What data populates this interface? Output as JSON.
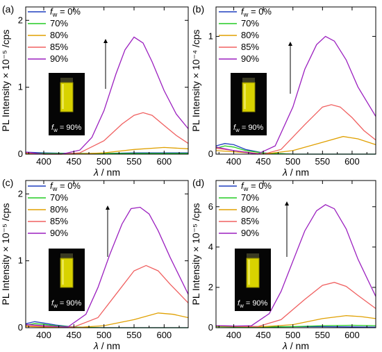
{
  "figure": {
    "x_axis_label": "λ / nm",
    "inset_label": "f_w = 90%",
    "legend_labels": [
      "f_w = 0%",
      "70%",
      "80%",
      "85%",
      "90%"
    ],
    "series_colors": [
      "#1f3fbf",
      "#22cc22",
      "#e0a000",
      "#f06060",
      "#9b1fbf"
    ]
  },
  "chart_data": [
    {
      "type": "line",
      "panel_label": "(a)",
      "ylabel": "PL Intensity × 10⁻⁵ /cps",
      "xlabel": "λ / nm",
      "xlim": [
        370,
        640
      ],
      "ylim": [
        0,
        2.2
      ],
      "x_ticks": [
        "400",
        "450",
        "500",
        "550",
        "600"
      ],
      "y_ticks": [
        "0",
        "1",
        "2"
      ],
      "series": [
        {
          "name": "f_w = 0%",
          "color": "#1f3fbf",
          "x": [
            370,
            400,
            450,
            500,
            550,
            600,
            640
          ],
          "y": [
            0.03,
            0.02,
            0.01,
            0.01,
            0.02,
            0.02,
            0.02
          ]
        },
        {
          "name": "70%",
          "color": "#22cc22",
          "x": [
            370,
            400,
            450,
            500,
            550,
            600,
            640
          ],
          "y": [
            0.02,
            0.01,
            0.01,
            0.01,
            0.01,
            0.01,
            0.01
          ]
        },
        {
          "name": "80%",
          "color": "#e0a000",
          "x": [
            370,
            400,
            450,
            500,
            550,
            600,
            640
          ],
          "y": [
            0.01,
            0.0,
            0.0,
            0.02,
            0.07,
            0.1,
            0.08
          ]
        },
        {
          "name": "85%",
          "color": "#f06060",
          "x": [
            370,
            400,
            430,
            460,
            500,
            530,
            550,
            565,
            580,
            600,
            620,
            640
          ],
          "y": [
            0.02,
            0.0,
            0.0,
            0.02,
            0.2,
            0.45,
            0.58,
            0.62,
            0.58,
            0.43,
            0.28,
            0.16
          ]
        },
        {
          "name": "90%",
          "color": "#9b1fbf",
          "x": [
            370,
            400,
            430,
            460,
            480,
            500,
            520,
            535,
            550,
            565,
            580,
            600,
            620,
            640
          ],
          "y": [
            0.03,
            0.0,
            0.0,
            0.06,
            0.25,
            0.65,
            1.2,
            1.56,
            1.75,
            1.66,
            1.38,
            0.95,
            0.6,
            0.38
          ]
        }
      ]
    },
    {
      "type": "line",
      "panel_label": "(b)",
      "ylabel": "PL Intensity × 10⁻⁴ /cps",
      "xlabel": "λ / nm",
      "xlim": [
        370,
        640
      ],
      "ylim": [
        0,
        1.25
      ],
      "x_ticks": [
        "400",
        "450",
        "500",
        "550",
        "600"
      ],
      "y_ticks": [
        "0",
        "1"
      ],
      "series": [
        {
          "name": "f_w = 0%",
          "color": "#1f3fbf",
          "x": [
            370,
            385,
            400,
            420,
            450,
            500,
            550,
            600,
            640
          ],
          "y": [
            0.07,
            0.09,
            0.08,
            0.04,
            0.01,
            0.0,
            0.0,
            0.0,
            0.0
          ]
        },
        {
          "name": "70%",
          "color": "#22cc22",
          "x": [
            370,
            385,
            400,
            420,
            450,
            500,
            550,
            600,
            640
          ],
          "y": [
            0.05,
            0.07,
            0.06,
            0.03,
            0.01,
            0.0,
            0.0,
            0.0,
            0.0
          ]
        },
        {
          "name": "80%",
          "color": "#e0a000",
          "x": [
            370,
            400,
            450,
            500,
            550,
            585,
            610,
            640
          ],
          "y": [
            0.03,
            0.02,
            0.0,
            0.03,
            0.1,
            0.15,
            0.13,
            0.08
          ]
        },
        {
          "name": "85%",
          "color": "#f06060",
          "x": [
            370,
            400,
            450,
            480,
            520,
            550,
            565,
            580,
            600,
            620,
            640
          ],
          "y": [
            0.05,
            0.03,
            0.0,
            0.04,
            0.25,
            0.4,
            0.42,
            0.4,
            0.31,
            0.2,
            0.12
          ]
        },
        {
          "name": "90%",
          "color": "#9b1fbf",
          "x": [
            370,
            400,
            440,
            470,
            500,
            520,
            540,
            555,
            570,
            590,
            610,
            640
          ],
          "y": [
            0.06,
            0.03,
            0.0,
            0.07,
            0.4,
            0.72,
            0.93,
            1.0,
            0.96,
            0.8,
            0.57,
            0.32
          ]
        }
      ]
    },
    {
      "type": "line",
      "panel_label": "(c)",
      "ylabel": "PL Intensity × 10⁻⁵ /cps",
      "xlabel": "λ / nm",
      "xlim": [
        370,
        640
      ],
      "ylim": [
        0,
        2.2
      ],
      "x_ticks": [
        "400",
        "450",
        "500",
        "550",
        "600"
      ],
      "y_ticks": [
        "0",
        "1",
        "2"
      ],
      "series": [
        {
          "name": "f_w = 0%",
          "color": "#1f3fbf",
          "x": [
            370,
            385,
            400,
            420,
            450,
            500,
            550,
            600,
            640
          ],
          "y": [
            0.06,
            0.09,
            0.07,
            0.04,
            0.01,
            0.0,
            0.0,
            0.0,
            0.0
          ]
        },
        {
          "name": "70%",
          "color": "#22cc22",
          "x": [
            370,
            385,
            400,
            420,
            450,
            500,
            550,
            600,
            640
          ],
          "y": [
            0.04,
            0.06,
            0.05,
            0.03,
            0.01,
            0.0,
            0.0,
            0.0,
            0.0
          ]
        },
        {
          "name": "80%",
          "color": "#e0a000",
          "x": [
            370,
            400,
            450,
            500,
            550,
            590,
            615,
            640
          ],
          "y": [
            0.02,
            0.01,
            0.0,
            0.03,
            0.12,
            0.22,
            0.2,
            0.15
          ]
        },
        {
          "name": "85%",
          "color": "#f06060",
          "x": [
            370,
            400,
            450,
            490,
            520,
            550,
            570,
            590,
            610,
            640
          ],
          "y": [
            0.03,
            0.02,
            0.01,
            0.15,
            0.5,
            0.85,
            0.93,
            0.85,
            0.65,
            0.37
          ]
        },
        {
          "name": "90%",
          "color": "#9b1fbf",
          "x": [
            370,
            400,
            440,
            470,
            490,
            510,
            530,
            545,
            560,
            575,
            590,
            610,
            640
          ],
          "y": [
            0.05,
            0.03,
            0.01,
            0.2,
            0.6,
            1.1,
            1.55,
            1.78,
            1.8,
            1.7,
            1.45,
            1.05,
            0.5
          ]
        }
      ]
    },
    {
      "type": "line",
      "panel_label": "(d)",
      "ylabel": "PL Intensity × 10⁻⁵ /cps",
      "xlabel": "λ / nm",
      "xlim": [
        370,
        640
      ],
      "ylim": [
        0,
        7.3
      ],
      "x_ticks": [
        "400",
        "450",
        "500",
        "550",
        "600"
      ],
      "y_ticks": [
        "0",
        "2",
        "4",
        "6"
      ],
      "series": [
        {
          "name": "f_w = 0%",
          "color": "#1f3fbf",
          "x": [
            370,
            400,
            450,
            500,
            550,
            600,
            640
          ],
          "y": [
            0.1,
            0.08,
            0.05,
            0.05,
            0.05,
            0.04,
            0.03
          ]
        },
        {
          "name": "70%",
          "color": "#22cc22",
          "x": [
            370,
            400,
            450,
            500,
            550,
            600,
            640
          ],
          "y": [
            0.05,
            0.04,
            0.03,
            0.05,
            0.1,
            0.12,
            0.1
          ]
        },
        {
          "name": "80%",
          "color": "#e0a000",
          "x": [
            370,
            400,
            450,
            500,
            550,
            590,
            615,
            640
          ],
          "y": [
            0.08,
            0.06,
            0.05,
            0.15,
            0.45,
            0.6,
            0.55,
            0.45
          ]
        },
        {
          "name": "85%",
          "color": "#f06060",
          "x": [
            370,
            400,
            440,
            480,
            520,
            550,
            570,
            590,
            610,
            640
          ],
          "y": [
            0.1,
            0.08,
            0.05,
            0.4,
            1.4,
            2.1,
            2.25,
            2.05,
            1.6,
            0.95
          ]
        },
        {
          "name": "90%",
          "color": "#9b1fbf",
          "x": [
            370,
            400,
            430,
            460,
            480,
            500,
            520,
            540,
            555,
            570,
            590,
            610,
            640
          ],
          "y": [
            0.1,
            0.08,
            0.1,
            0.7,
            1.8,
            3.3,
            4.8,
            5.8,
            6.1,
            5.9,
            4.9,
            3.4,
            1.55
          ]
        }
      ]
    }
  ]
}
